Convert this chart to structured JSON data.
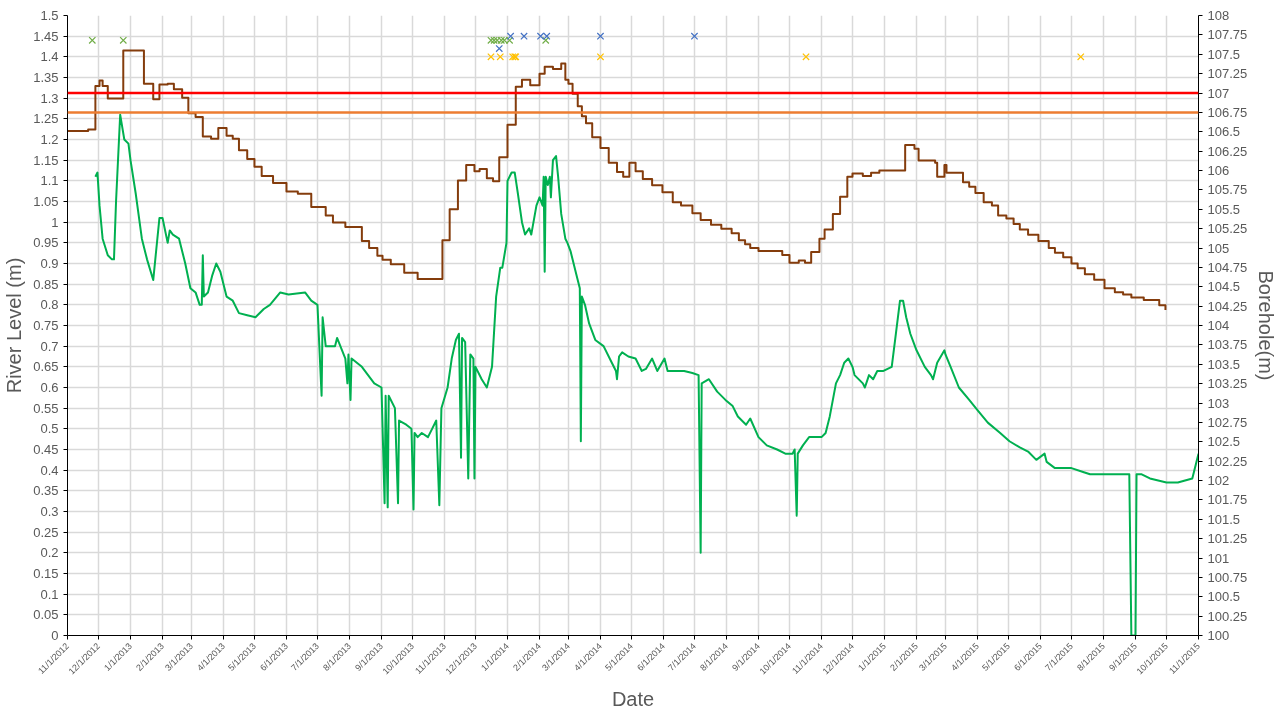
{
  "chart_data": {
    "type": "line",
    "xlabel": "Date",
    "ylabel": "River Level (m)",
    "y2label": "Borehole(m)",
    "xlim": [
      "2012-11-01",
      "2015-11-01"
    ],
    "xticks": [
      {
        "value": "2012-11-01",
        "label": "11/1/2012"
      },
      {
        "value": "2012-12-01",
        "label": "12/1/2012"
      },
      {
        "value": "2013-01-01",
        "label": "1/1/2013"
      },
      {
        "value": "2013-02-01",
        "label": "2/1/2013"
      },
      {
        "value": "2013-03-01",
        "label": "3/1/2013"
      },
      {
        "value": "2013-04-01",
        "label": "4/1/2013"
      },
      {
        "value": "2013-05-01",
        "label": "5/1/2013"
      },
      {
        "value": "2013-06-01",
        "label": "6/1/2013"
      },
      {
        "value": "2013-07-01",
        "label": "7/1/2013"
      },
      {
        "value": "2013-08-01",
        "label": "8/1/2013"
      },
      {
        "value": "2013-09-01",
        "label": "9/1/2013"
      },
      {
        "value": "2013-10-01",
        "label": "10/1/2013"
      },
      {
        "value": "2013-11-01",
        "label": "11/1/2013"
      },
      {
        "value": "2013-12-01",
        "label": "12/1/2013"
      },
      {
        "value": "2014-01-01",
        "label": "1/1/2014"
      },
      {
        "value": "2014-02-01",
        "label": "2/1/2014"
      },
      {
        "value": "2014-03-01",
        "label": "3/1/2014"
      },
      {
        "value": "2014-04-01",
        "label": "4/1/2014"
      },
      {
        "value": "2014-05-01",
        "label": "5/1/2014"
      },
      {
        "value": "2014-06-01",
        "label": "6/1/2014"
      },
      {
        "value": "2014-07-01",
        "label": "7/1/2014"
      },
      {
        "value": "2014-08-01",
        "label": "8/1/2014"
      },
      {
        "value": "2014-09-01",
        "label": "9/1/2014"
      },
      {
        "value": "2014-10-01",
        "label": "10/1/2014"
      },
      {
        "value": "2014-11-01",
        "label": "11/1/2014"
      },
      {
        "value": "2014-12-01",
        "label": "12/1/2014"
      },
      {
        "value": "2015-01-01",
        "label": "1/1/2015"
      },
      {
        "value": "2015-02-01",
        "label": "2/1/2015"
      },
      {
        "value": "2015-03-01",
        "label": "3/1/2015"
      },
      {
        "value": "2015-04-01",
        "label": "4/1/2015"
      },
      {
        "value": "2015-05-01",
        "label": "5/1/2015"
      },
      {
        "value": "2015-06-01",
        "label": "6/1/2015"
      },
      {
        "value": "2015-07-01",
        "label": "7/1/2015"
      },
      {
        "value": "2015-08-01",
        "label": "8/1/2015"
      },
      {
        "value": "2015-09-01",
        "label": "9/1/2015"
      },
      {
        "value": "2015-10-01",
        "label": "10/1/2015"
      },
      {
        "value": "2015-11-01",
        "label": "11/1/2015"
      }
    ],
    "ylim": [
      0,
      1.5
    ],
    "yticks": [
      0,
      0.05,
      0.1,
      0.15,
      0.2,
      0.25,
      0.3,
      0.35,
      0.4,
      0.45,
      0.5,
      0.55,
      0.6,
      0.65,
      0.7,
      0.75,
      0.8,
      0.85,
      0.9,
      0.95,
      1,
      1.05,
      1.1,
      1.15,
      1.2,
      1.25,
      1.3,
      1.35,
      1.4,
      1.45,
      1.5
    ],
    "y2lim": [
      100,
      108
    ],
    "y2ticks": [
      100,
      100.25,
      100.5,
      100.75,
      101,
      101.25,
      101.5,
      101.75,
      102,
      102.25,
      102.5,
      102.75,
      103,
      103.25,
      103.5,
      103.75,
      104,
      104.25,
      104.5,
      104.75,
      105,
      105.25,
      105.5,
      105.75,
      106,
      106.25,
      106.5,
      106.75,
      107,
      107.25,
      107.5,
      107.75,
      108
    ],
    "grid": true,
    "line_style": "solid",
    "ref_lines": [
      {
        "axis": "y2",
        "value": 107,
        "color": "#ff0000"
      },
      {
        "axis": "y2",
        "value": 106.75,
        "color": "#ed7d31"
      }
    ],
    "series": [
      {
        "color": "#00b050",
        "x": [
          "2012-11-28",
          "2012-11-30",
          "2012-12-02",
          "2012-12-05",
          "2012-12-10",
          "2012-12-14",
          "2012-12-16",
          "2012-12-18",
          "2012-12-22",
          "2012-12-26",
          "2012-12-30",
          "2013-01-01",
          "2013-01-06",
          "2013-01-12",
          "2013-01-17",
          "2013-01-23",
          "2013-01-29",
          "2013-02-01",
          "2013-02-06",
          "2013-02-08",
          "2013-02-11",
          "2013-02-17",
          "2013-02-23",
          "2013-02-28",
          "2013-03-05",
          "2013-03-09",
          "2013-03-11",
          "2013-03-12",
          "2013-03-13",
          "2013-03-17",
          "2013-03-21",
          "2013-03-25",
          "2013-03-29",
          "2013-04-04",
          "2013-04-10",
          "2013-04-16",
          "2013-04-24",
          "2013-05-02",
          "2013-05-10",
          "2013-05-16",
          "2013-05-26",
          "2013-06-03",
          "2013-06-19",
          "2013-06-25",
          "2013-07-01",
          "2013-07-05",
          "2013-07-06",
          "2013-07-09",
          "2013-07-18",
          "2013-07-20",
          "2013-07-28",
          "2013-07-30",
          "2013-07-31",
          "2013-08-02",
          "2013-08-03",
          "2013-08-13",
          "2013-08-25",
          "2013-09-01",
          "2013-09-04",
          "2013-09-05",
          "2013-09-07",
          "2013-09-08",
          "2013-09-14",
          "2013-09-17",
          "2013-09-18",
          "2013-09-25",
          "2013-09-30",
          "2013-10-02",
          "2013-10-03",
          "2013-10-06",
          "2013-10-10",
          "2013-10-16",
          "2013-10-20",
          "2013-10-24",
          "2013-10-27",
          "2013-10-29",
          "2013-11-04",
          "2013-11-08",
          "2013-11-12",
          "2013-11-15",
          "2013-11-17",
          "2013-11-18",
          "2013-11-21",
          "2013-11-24",
          "2013-11-26",
          "2013-11-29",
          "2013-11-30",
          "2013-12-01",
          "2013-12-07",
          "2013-12-12",
          "2013-12-17",
          "2013-12-21",
          "2013-12-25",
          "2013-12-27",
          "2013-12-31",
          "2014-01-01",
          "2014-01-05",
          "2014-01-08",
          "2014-01-11",
          "2014-01-15",
          "2014-01-18",
          "2014-01-22",
          "2014-01-24",
          "2014-01-29",
          "2014-02-01",
          "2014-02-04",
          "2014-02-05",
          "2014-02-06",
          "2014-02-07",
          "2014-02-09",
          "2014-02-11",
          "2014-02-12",
          "2014-02-14",
          "2014-02-17",
          "2014-02-19",
          "2014-02-22",
          "2014-02-26",
          "2014-02-28",
          "2014-03-03",
          "2014-03-09",
          "2014-03-12",
          "2014-03-13",
          "2014-03-14",
          "2014-03-17",
          "2014-03-21",
          "2014-03-27",
          "2014-04-04",
          "2014-04-12",
          "2014-04-16",
          "2014-04-17",
          "2014-04-19",
          "2014-04-22",
          "2014-04-28",
          "2014-05-05",
          "2014-05-11",
          "2014-05-15",
          "2014-05-21",
          "2014-05-26",
          "2014-06-02",
          "2014-06-05",
          "2014-06-21",
          "2014-06-29",
          "2014-07-05",
          "2014-07-07",
          "2014-07-08",
          "2014-07-15",
          "2014-07-23",
          "2014-07-31",
          "2014-08-07",
          "2014-08-12",
          "2014-08-20",
          "2014-08-24",
          "2014-09-01",
          "2014-09-09",
          "2014-09-19",
          "2014-09-27",
          "2014-10-04",
          "2014-10-06",
          "2014-10-08",
          "2014-10-09",
          "2014-10-14",
          "2014-10-20",
          "2014-11-01",
          "2014-11-05",
          "2014-11-09",
          "2014-11-15",
          "2014-11-19",
          "2014-11-23",
          "2014-11-27",
          "2014-12-01",
          "2014-12-03",
          "2014-12-11",
          "2014-12-13",
          "2014-12-17",
          "2014-12-21",
          "2014-12-25",
          "2014-12-31",
          "2015-01-08",
          "2015-01-12",
          "2015-01-16",
          "2015-01-19",
          "2015-01-22",
          "2015-01-26",
          "2015-02-01",
          "2015-02-09",
          "2015-02-15",
          "2015-02-17",
          "2015-02-21",
          "2015-02-28",
          "2015-03-01",
          "2015-03-06",
          "2015-03-14",
          "2015-03-24",
          "2015-04-01",
          "2015-04-11",
          "2015-04-23",
          "2015-05-02",
          "2015-05-12",
          "2015-05-20",
          "2015-05-28",
          "2015-06-05",
          "2015-06-07",
          "2015-06-15",
          "2015-07-01",
          "2015-07-13",
          "2015-07-19",
          "2015-08-06",
          "2015-08-26",
          "2015-08-28",
          "2015-09-01",
          "2015-09-02",
          "2015-09-07",
          "2015-09-15",
          "2015-10-01",
          "2015-10-12",
          "2015-10-26",
          "2015-10-30",
          "2015-11-01"
        ],
        "values": [
          1.11,
          1.12,
          1.04,
          0.96,
          0.92,
          0.91,
          0.91,
          1.05,
          1.26,
          1.2,
          1.19,
          1.15,
          1.07,
          0.96,
          0.91,
          0.86,
          1.01,
          1.01,
          0.95,
          0.98,
          0.97,
          0.96,
          0.9,
          0.84,
          0.83,
          0.8,
          0.8,
          0.92,
          0.82,
          0.83,
          0.87,
          0.9,
          0.88,
          0.82,
          0.81,
          0.78,
          0.775,
          0.77,
          0.79,
          0.8,
          0.83,
          0.825,
          0.83,
          0.81,
          0.8,
          0.58,
          0.77,
          0.7,
          0.7,
          0.72,
          0.67,
          0.61,
          0.68,
          0.57,
          0.67,
          0.65,
          0.61,
          0.6,
          0.32,
          0.58,
          0.31,
          0.58,
          0.55,
          0.32,
          0.52,
          0.51,
          0.5,
          0.305,
          0.49,
          0.48,
          0.49,
          0.48,
          0.5,
          0.52,
          0.315,
          0.55,
          0.6,
          0.67,
          0.715,
          0.73,
          0.43,
          0.72,
          0.71,
          0.38,
          0.68,
          0.67,
          0.38,
          0.65,
          0.62,
          0.6,
          0.65,
          0.82,
          0.89,
          0.89,
          0.95,
          1.1,
          1.12,
          1.12,
          1.07,
          1.0,
          0.97,
          0.985,
          0.97,
          1.04,
          1.06,
          1.04,
          1.11,
          0.88,
          1.11,
          1.09,
          1.11,
          1.06,
          1.15,
          1.16,
          1.11,
          1.02,
          0.96,
          0.95,
          0.93,
          0.87,
          0.84,
          0.47,
          0.82,
          0.8,
          0.755,
          0.715,
          0.7,
          0.66,
          0.64,
          0.62,
          0.675,
          0.685,
          0.675,
          0.67,
          0.64,
          0.645,
          0.67,
          0.64,
          0.67,
          0.64,
          0.64,
          0.635,
          0.63,
          0.2,
          0.61,
          0.62,
          0.59,
          0.57,
          0.555,
          0.53,
          0.51,
          0.525,
          0.48,
          0.46,
          0.45,
          0.44,
          0.44,
          0.45,
          0.29,
          0.44,
          0.46,
          0.48,
          0.48,
          0.49,
          0.53,
          0.61,
          0.63,
          0.66,
          0.67,
          0.65,
          0.63,
          0.61,
          0.6,
          0.63,
          0.62,
          0.64,
          0.64,
          0.65,
          0.73,
          0.81,
          0.81,
          0.77,
          0.73,
          0.69,
          0.65,
          0.63,
          0.62,
          0.66,
          0.69,
          0.68,
          0.65,
          0.6,
          0.57,
          0.545,
          0.515,
          0.49,
          0.47,
          0.455,
          0.445,
          0.425,
          0.44,
          0.42,
          0.405,
          0.405,
          0.395,
          0.39,
          0.39,
          0.39,
          0,
          0,
          0.39,
          0.39,
          0.38,
          0.37,
          0.37,
          0.38,
          0.42,
          0.44
        ]
      },
      {
        "type": "step",
        "axis": "y2",
        "color": "#843c0c",
        "x": [
          "2012-11-01",
          "2012-11-21",
          "2012-11-28",
          "2012-12-02",
          "2012-12-05",
          "2012-12-10",
          "2012-12-25",
          "2013-01-14",
          "2013-01-23",
          "2013-01-29",
          "2013-02-06",
          "2013-02-12",
          "2013-02-20",
          "2013-02-26",
          "2013-03-05",
          "2013-03-12",
          "2013-03-20",
          "2013-03-27",
          "2013-04-04",
          "2013-04-10",
          "2013-04-16",
          "2013-04-24",
          "2013-05-01",
          "2013-05-08",
          "2013-05-19",
          "2013-06-01",
          "2013-06-12",
          "2013-06-25",
          "2013-07-09",
          "2013-07-16",
          "2013-07-28",
          "2013-08-13",
          "2013-08-20",
          "2013-08-28",
          "2013-09-02",
          "2013-09-10",
          "2013-09-23",
          "2013-10-06",
          "2013-10-30",
          "2013-11-06",
          "2013-11-14",
          "2013-11-22",
          "2013-11-30",
          "2013-12-05",
          "2013-12-12",
          "2013-12-18",
          "2013-12-24",
          "2014-01-01",
          "2014-01-09",
          "2014-01-15",
          "2014-01-23",
          "2014-02-01",
          "2014-02-06",
          "2014-02-14",
          "2014-02-22",
          "2014-02-26",
          "2014-03-01",
          "2014-03-05",
          "2014-03-10",
          "2014-03-14",
          "2014-03-18",
          "2014-03-24",
          "2014-04-01",
          "2014-04-09",
          "2014-04-17",
          "2014-04-23",
          "2014-04-29",
          "2014-05-05",
          "2014-05-12",
          "2014-05-21",
          "2014-05-31",
          "2014-06-10",
          "2014-06-18",
          "2014-06-29",
          "2014-07-07",
          "2014-07-17",
          "2014-07-27",
          "2014-08-06",
          "2014-08-13",
          "2014-08-19",
          "2014-08-24",
          "2014-09-01",
          "2014-09-24",
          "2014-10-01",
          "2014-10-10",
          "2014-10-16",
          "2014-10-22",
          "2014-10-30",
          "2014-11-04",
          "2014-11-12",
          "2014-11-19",
          "2014-11-26",
          "2014-12-01",
          "2014-12-11",
          "2014-12-19",
          "2014-12-27",
          "2015-01-21",
          "2015-01-30",
          "2015-02-03",
          "2015-02-19",
          "2015-02-21",
          "2015-02-28",
          "2015-03-02",
          "2015-03-18",
          "2015-03-24",
          "2015-03-30",
          "2015-04-07",
          "2015-04-15",
          "2015-04-21",
          "2015-04-29",
          "2015-05-06",
          "2015-05-12",
          "2015-05-20",
          "2015-05-30",
          "2015-06-09",
          "2015-06-15",
          "2015-06-23",
          "2015-07-01",
          "2015-07-07",
          "2015-07-14",
          "2015-07-23",
          "2015-08-02",
          "2015-08-12",
          "2015-08-20",
          "2015-08-28",
          "2015-09-09",
          "2015-09-24",
          "2015-09-30"
        ],
        "values": [
          106.51,
          106.53,
          107.09,
          107.16,
          107.09,
          106.93,
          107.55,
          107.12,
          106.92,
          107.11,
          107.12,
          107.05,
          106.94,
          106.74,
          106.69,
          106.44,
          106.41,
          106.55,
          106.45,
          106.41,
          106.26,
          106.15,
          106.05,
          105.93,
          105.84,
          105.73,
          105.7,
          105.53,
          105.42,
          105.33,
          105.27,
          105.09,
          105.0,
          104.9,
          104.85,
          104.79,
          104.68,
          104.6,
          105.1,
          105.5,
          105.87,
          106.07,
          105.99,
          106.02,
          105.9,
          105.86,
          106.17,
          106.59,
          107.08,
          107.17,
          107.1,
          107.25,
          107.34,
          107.31,
          107.38,
          107.17,
          107.12,
          106.99,
          106.83,
          106.7,
          106.61,
          106.43,
          106.29,
          106.1,
          105.98,
          105.92,
          106.1,
          105.99,
          105.89,
          105.81,
          105.72,
          105.59,
          105.55,
          105.45,
          105.36,
          105.3,
          105.25,
          105.19,
          105.1,
          105.05,
          105.0,
          104.96,
          104.91,
          104.81,
          104.84,
          104.81,
          104.95,
          105.12,
          105.24,
          105.44,
          105.66,
          105.92,
          105.96,
          105.93,
          105.97,
          106.0,
          106.33,
          106.28,
          106.13,
          106.1,
          105.92,
          106.07,
          105.97,
          105.85,
          105.79,
          105.71,
          105.59,
          105.55,
          105.42,
          105.38,
          105.31,
          105.24,
          105.17,
          105.09,
          105.0,
          104.94,
          104.88,
          104.8,
          104.74,
          104.66,
          104.59,
          104.48,
          104.43,
          104.4,
          104.36,
          104.33,
          104.26,
          104.2
        ]
      },
      {
        "type": "scatter",
        "marker": "cross",
        "color": "#70ad47",
        "x": [
          "2012-11-25",
          "2012-12-25",
          "2013-12-16",
          "2013-12-19",
          "2013-12-22",
          "2013-12-26",
          "2013-12-29",
          "2014-01-03",
          "2014-02-07"
        ],
        "values": [
          1.44,
          1.44,
          1.44,
          1.44,
          1.44,
          1.44,
          1.44,
          1.44,
          1.44
        ]
      },
      {
        "type": "scatter",
        "marker": "cross",
        "color": "#4472c4",
        "x": [
          "2013-12-24",
          "2014-01-04",
          "2014-01-17",
          "2014-02-02",
          "2014-02-08",
          "2014-04-01",
          "2014-07-01"
        ],
        "values": [
          1.42,
          1.45,
          1.45,
          1.45,
          1.45,
          1.45,
          1.45
        ]
      },
      {
        "type": "scatter",
        "marker": "cross",
        "color": "#ffc000",
        "x": [
          "2013-12-16",
          "2013-12-25",
          "2014-01-06",
          "2014-01-08",
          "2014-01-09",
          "2014-04-01",
          "2014-10-17",
          "2015-07-10"
        ],
        "values": [
          1.4,
          1.4,
          1.4,
          1.4,
          1.4,
          1.4,
          1.4,
          1.4
        ]
      }
    ]
  }
}
